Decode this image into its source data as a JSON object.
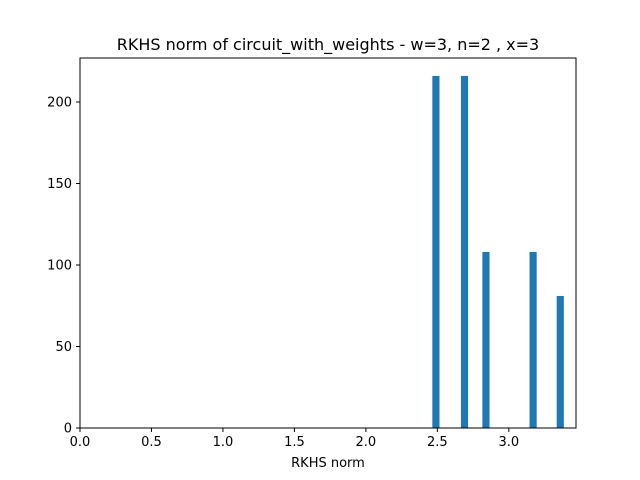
{
  "chart_data": {
    "type": "bar",
    "title": "RKHS norm of circuit_with_weights - w=3, n=2 , x=3",
    "xlabel": "RKHS norm",
    "ylabel": "",
    "xlim": [
      0,
      3.47
    ],
    "ylim": [
      0,
      227
    ],
    "bar_width": 0.05,
    "color": "#1f77b4",
    "grid": false,
    "x_ticks": [
      {
        "value": 0.0,
        "label": "0.0"
      },
      {
        "value": 0.5,
        "label": "0.5"
      },
      {
        "value": 1.0,
        "label": "1.0"
      },
      {
        "value": 1.5,
        "label": "1.5"
      },
      {
        "value": 2.0,
        "label": "2.0"
      },
      {
        "value": 2.5,
        "label": "2.5"
      },
      {
        "value": 3.0,
        "label": "3.0"
      }
    ],
    "y_ticks": [
      {
        "value": 0,
        "label": "0"
      },
      {
        "value": 50,
        "label": "50"
      },
      {
        "value": 100,
        "label": "100"
      },
      {
        "value": 150,
        "label": "150"
      },
      {
        "value": 200,
        "label": "200"
      }
    ],
    "bars": [
      {
        "x": 2.49,
        "value": 216
      },
      {
        "x": 2.69,
        "value": 216
      },
      {
        "x": 2.84,
        "value": 108
      },
      {
        "x": 3.17,
        "value": 108
      },
      {
        "x": 3.36,
        "value": 81
      }
    ]
  }
}
